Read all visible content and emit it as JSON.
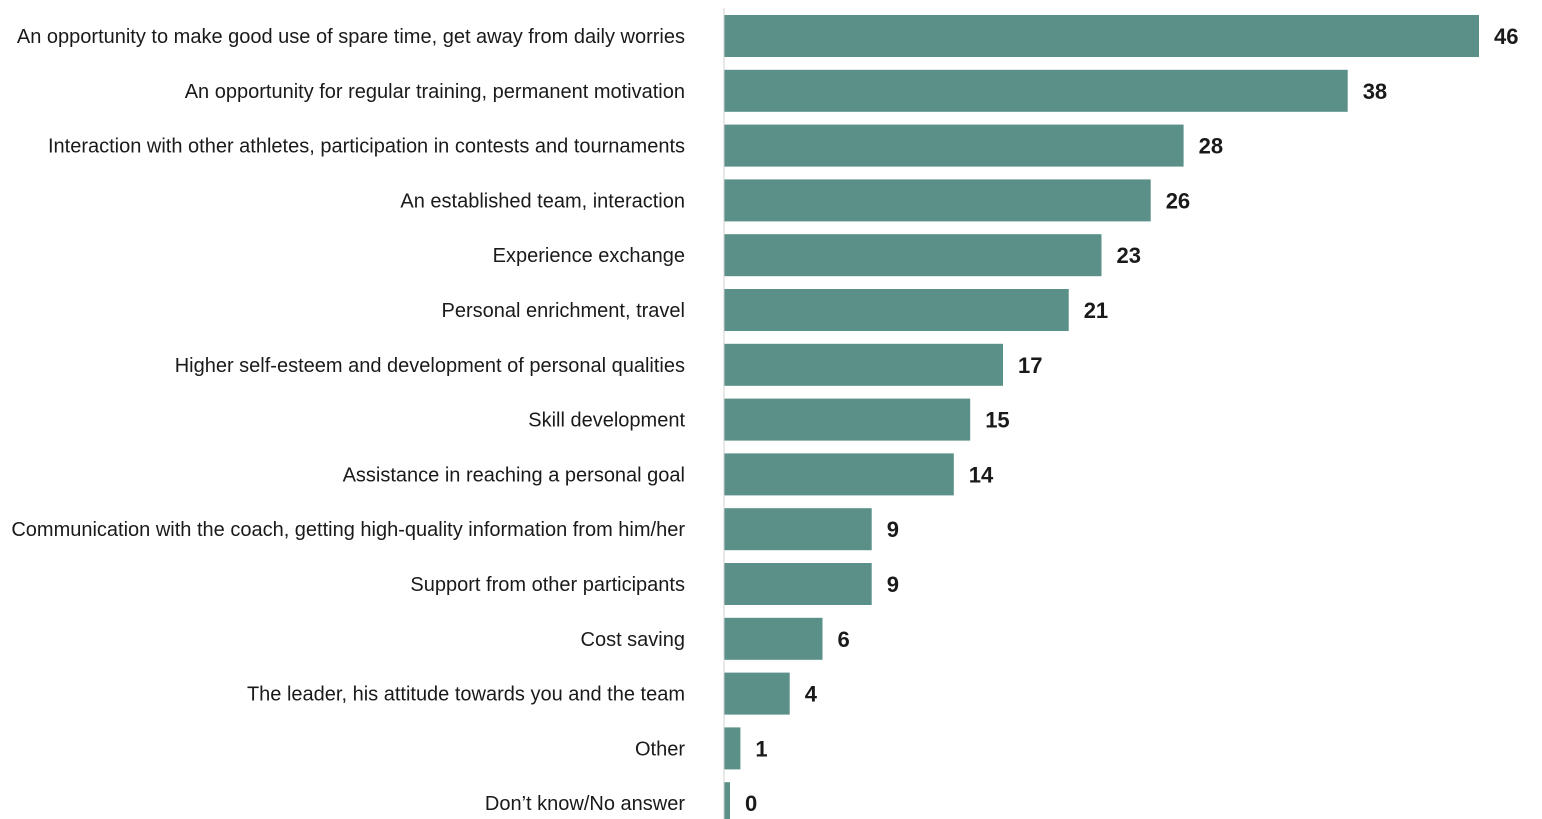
{
  "chart_data": {
    "type": "bar",
    "orientation": "horizontal",
    "title": "",
    "xlabel": "",
    "ylabel": "",
    "categories": [
      "An opportunity to make good use of spare time, get away from daily worries",
      "An opportunity for regular training, permanent motivation",
      "Interaction with other athletes, participation in contests and tournaments",
      "An established team, interaction",
      "Experience exchange",
      "Personal enrichment, travel",
      "Higher self-esteem and development of personal qualities",
      "Skill development",
      "Assistance in reaching a personal goal",
      "Communication with the coach, getting high-quality information from him/her",
      "Support from other participants",
      "Cost saving",
      "The leader, his attitude towards you and the team",
      "Other",
      "Don’t know/No answer"
    ],
    "values": [
      46,
      38,
      28,
      26,
      23,
      21,
      17,
      15,
      14,
      9,
      9,
      6,
      4,
      1,
      0
    ],
    "xlim": [
      0,
      46
    ],
    "grid": false,
    "legend": "none",
    "bar_color": "#5a9088"
  }
}
